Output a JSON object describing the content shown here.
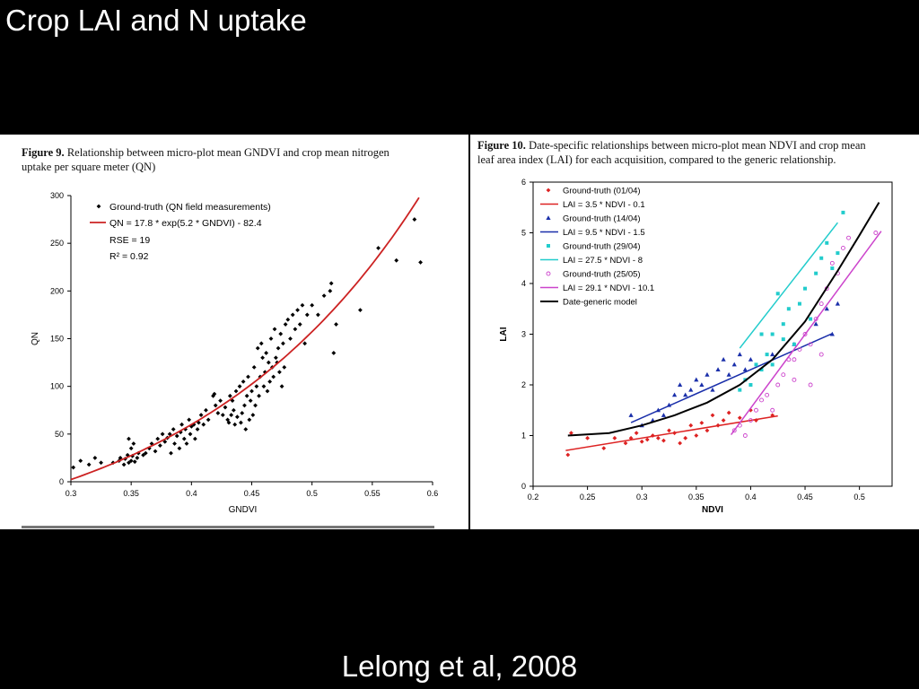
{
  "slide": {
    "title": "Crop LAI and N uptake",
    "citation": "Lelong et al, 2008"
  },
  "figure9": {
    "label": "Figure 9.",
    "caption_line1": " Relationship between micro-plot mean GNDVI and crop mean nitrogen",
    "caption_line2": "uptake per square meter (QN)"
  },
  "figure10": {
    "label": "Figure 10.",
    "caption_line1": " Date-specific relationships between micro-plot mean NDVI and crop mean",
    "caption_line2": "leaf area index (LAI) for each acquisition, compared to the generic relationship."
  },
  "chart_data": [
    {
      "type": "scatter",
      "xlabel": "GNDVI",
      "ylabel": "QN",
      "xlim": [
        0.3,
        0.6
      ],
      "ylim": [
        0,
        300
      ],
      "xticks": [
        "0.3",
        "0.35",
        "0.4",
        "0.45",
        "0.5",
        "0.55",
        "0.6"
      ],
      "yticks": [
        "0",
        "50",
        "100",
        "150",
        "200",
        "250",
        "300"
      ],
      "legend": [
        "Ground-truth (QN field measurements)",
        "QN = 17.8 * exp(5.2 * GNDVI) - 82.4"
      ],
      "annotations": [
        "RSE = 19",
        "R² = 0.92"
      ],
      "point_color": "#000000",
      "curve_color": "#cc2222",
      "points": [
        [
          0.302,
          15
        ],
        [
          0.308,
          22
        ],
        [
          0.315,
          18
        ],
        [
          0.32,
          25
        ],
        [
          0.325,
          20
        ],
        [
          0.335,
          20
        ],
        [
          0.34,
          22
        ],
        [
          0.341,
          25
        ],
        [
          0.344,
          18
        ],
        [
          0.345,
          24
        ],
        [
          0.347,
          28
        ],
        [
          0.348,
          20
        ],
        [
          0.35,
          22
        ],
        [
          0.351,
          27
        ],
        [
          0.353,
          21
        ],
        [
          0.355,
          25
        ],
        [
          0.348,
          45
        ],
        [
          0.352,
          40
        ],
        [
          0.35,
          35
        ],
        [
          0.356,
          30
        ],
        [
          0.36,
          28
        ],
        [
          0.362,
          30
        ],
        [
          0.365,
          35
        ],
        [
          0.367,
          40
        ],
        [
          0.37,
          32
        ],
        [
          0.372,
          45
        ],
        [
          0.374,
          38
        ],
        [
          0.376,
          50
        ],
        [
          0.378,
          42
        ],
        [
          0.38,
          46
        ],
        [
          0.382,
          50
        ],
        [
          0.383,
          30
        ],
        [
          0.385,
          55
        ],
        [
          0.386,
          40
        ],
        [
          0.388,
          48
        ],
        [
          0.39,
          35
        ],
        [
          0.391,
          52
        ],
        [
          0.392,
          60
        ],
        [
          0.394,
          45
        ],
        [
          0.395,
          55
        ],
        [
          0.396,
          40
        ],
        [
          0.398,
          65
        ],
        [
          0.399,
          50
        ],
        [
          0.4,
          58
        ],
        [
          0.402,
          60
        ],
        [
          0.403,
          45
        ],
        [
          0.405,
          55
        ],
        [
          0.406,
          62
        ],
        [
          0.408,
          70
        ],
        [
          0.41,
          60
        ],
        [
          0.412,
          75
        ],
        [
          0.414,
          65
        ],
        [
          0.418,
          90
        ],
        [
          0.419,
          92
        ],
        [
          0.42,
          80
        ],
        [
          0.422,
          72
        ],
        [
          0.424,
          85
        ],
        [
          0.426,
          70
        ],
        [
          0.428,
          78
        ],
        [
          0.43,
          65
        ],
        [
          0.431,
          62
        ],
        [
          0.432,
          90
        ],
        [
          0.433,
          70
        ],
        [
          0.434,
          85
        ],
        [
          0.435,
          75
        ],
        [
          0.436,
          60
        ],
        [
          0.437,
          95
        ],
        [
          0.438,
          68
        ],
        [
          0.44,
          100
        ],
        [
          0.441,
          62
        ],
        [
          0.442,
          72
        ],
        [
          0.443,
          105
        ],
        [
          0.444,
          80
        ],
        [
          0.445,
          55
        ],
        [
          0.446,
          90
        ],
        [
          0.447,
          110
        ],
        [
          0.448,
          65
        ],
        [
          0.449,
          85
        ],
        [
          0.45,
          95
        ],
        [
          0.451,
          70
        ],
        [
          0.452,
          120
        ],
        [
          0.453,
          80
        ],
        [
          0.454,
          100
        ],
        [
          0.455,
          140
        ],
        [
          0.456,
          90
        ],
        [
          0.457,
          110
        ],
        [
          0.458,
          145
        ],
        [
          0.459,
          130
        ],
        [
          0.46,
          100
        ],
        [
          0.461,
          115
        ],
        [
          0.462,
          135
        ],
        [
          0.463,
          95
        ],
        [
          0.464,
          125
        ],
        [
          0.465,
          105
        ],
        [
          0.466,
          150
        ],
        [
          0.467,
          120
        ],
        [
          0.468,
          110
        ],
        [
          0.469,
          160
        ],
        [
          0.47,
          130
        ],
        [
          0.471,
          125
        ],
        [
          0.472,
          140
        ],
        [
          0.473,
          115
        ],
        [
          0.474,
          155
        ],
        [
          0.475,
          100
        ],
        [
          0.476,
          145
        ],
        [
          0.477,
          120
        ],
        [
          0.478,
          165
        ],
        [
          0.48,
          170
        ],
        [
          0.482,
          150
        ],
        [
          0.484,
          175
        ],
        [
          0.486,
          160
        ],
        [
          0.488,
          180
        ],
        [
          0.49,
          165
        ],
        [
          0.492,
          185
        ],
        [
          0.494,
          145
        ],
        [
          0.496,
          175
        ],
        [
          0.5,
          185
        ],
        [
          0.505,
          175
        ],
        [
          0.51,
          195
        ],
        [
          0.515,
          200
        ],
        [
          0.516,
          208
        ],
        [
          0.518,
          135
        ],
        [
          0.52,
          165
        ],
        [
          0.54,
          180
        ],
        [
          0.555,
          245
        ],
        [
          0.57,
          232
        ],
        [
          0.585,
          275
        ],
        [
          0.59,
          230
        ]
      ]
    },
    {
      "type": "scatter",
      "xlabel": "NDVI",
      "ylabel": "LAI",
      "xlim": [
        0.2,
        0.53
      ],
      "ylim": [
        0,
        6
      ],
      "xticks": [
        "0.2",
        "0.25",
        "0.3",
        "0.35",
        "0.4",
        "0.45",
        "0.5"
      ],
      "yticks": [
        "0",
        "1",
        "2",
        "3",
        "4",
        "5",
        "6"
      ],
      "series": [
        {
          "name": "Ground-truth (01/04)",
          "marker": "diamond",
          "color": "#dd2222",
          "points": [
            [
              0.232,
              0.62
            ],
            [
              0.235,
              1.05
            ],
            [
              0.25,
              0.95
            ],
            [
              0.265,
              0.75
            ],
            [
              0.275,
              0.95
            ],
            [
              0.285,
              0.85
            ],
            [
              0.29,
              0.95
            ],
            [
              0.295,
              1.05
            ],
            [
              0.3,
              0.88
            ],
            [
              0.305,
              0.92
            ],
            [
              0.31,
              1.0
            ],
            [
              0.315,
              0.95
            ],
            [
              0.32,
              0.9
            ],
            [
              0.325,
              1.1
            ],
            [
              0.33,
              1.05
            ],
            [
              0.335,
              0.85
            ],
            [
              0.34,
              0.95
            ],
            [
              0.345,
              1.2
            ],
            [
              0.35,
              1.0
            ],
            [
              0.355,
              1.25
            ],
            [
              0.36,
              1.1
            ],
            [
              0.365,
              1.4
            ],
            [
              0.37,
              1.2
            ],
            [
              0.375,
              1.3
            ],
            [
              0.38,
              1.45
            ],
            [
              0.39,
              1.35
            ],
            [
              0.4,
              1.5
            ],
            [
              0.405,
              1.3
            ],
            [
              0.42,
              1.4
            ]
          ]
        },
        {
          "name": "LAI = 3.5 * NDVI - 0.1",
          "type": "line",
          "color": "#dd2222",
          "x": [
            0.23,
            0.425
          ]
        },
        {
          "name": "Ground-truth (14/04)",
          "marker": "triangle",
          "color": "#1a2faa",
          "points": [
            [
              0.29,
              1.4
            ],
            [
              0.3,
              1.2
            ],
            [
              0.31,
              1.3
            ],
            [
              0.315,
              1.5
            ],
            [
              0.32,
              1.4
            ],
            [
              0.325,
              1.6
            ],
            [
              0.33,
              1.8
            ],
            [
              0.335,
              2.0
            ],
            [
              0.34,
              1.8
            ],
            [
              0.345,
              1.9
            ],
            [
              0.35,
              2.1
            ],
            [
              0.355,
              2.0
            ],
            [
              0.36,
              2.2
            ],
            [
              0.365,
              1.9
            ],
            [
              0.37,
              2.3
            ],
            [
              0.375,
              2.5
            ],
            [
              0.38,
              2.2
            ],
            [
              0.385,
              2.4
            ],
            [
              0.39,
              2.6
            ],
            [
              0.395,
              2.3
            ],
            [
              0.4,
              2.5
            ],
            [
              0.42,
              2.6
            ],
            [
              0.44,
              2.8
            ],
            [
              0.46,
              3.2
            ],
            [
              0.47,
              3.5
            ],
            [
              0.475,
              3.0
            ],
            [
              0.48,
              3.6
            ]
          ]
        },
        {
          "name": "LAI = 9.5 * NDVI - 1.5",
          "type": "line",
          "color": "#1a2faa",
          "x": [
            0.29,
            0.475
          ]
        },
        {
          "name": "Ground-truth (29/04)",
          "marker": "square",
          "color": "#22cccc",
          "points": [
            [
              0.39,
              1.9
            ],
            [
              0.395,
              2.1
            ],
            [
              0.4,
              2.0
            ],
            [
              0.405,
              2.4
            ],
            [
              0.41,
              2.3
            ],
            [
              0.415,
              2.6
            ],
            [
              0.42,
              3.0
            ],
            [
              0.425,
              3.8
            ],
            [
              0.43,
              3.2
            ],
            [
              0.435,
              3.5
            ],
            [
              0.44,
              2.8
            ],
            [
              0.445,
              3.6
            ],
            [
              0.45,
              3.9
            ],
            [
              0.455,
              3.3
            ],
            [
              0.46,
              4.2
            ],
            [
              0.465,
              4.5
            ],
            [
              0.47,
              4.8
            ],
            [
              0.475,
              4.3
            ],
            [
              0.48,
              4.6
            ],
            [
              0.485,
              5.4
            ],
            [
              0.41,
              3.0
            ],
            [
              0.42,
              2.4
            ],
            [
              0.43,
              2.9
            ]
          ]
        },
        {
          "name": "LAI = 27.5 * NDVI - 8",
          "type": "line",
          "color": "#22cccc",
          "x": [
            0.39,
            0.48
          ]
        },
        {
          "name": "Ground-truth (25/05)",
          "marker": "circle-open",
          "color": "#cc44cc",
          "points": [
            [
              0.385,
              1.1
            ],
            [
              0.39,
              1.2
            ],
            [
              0.395,
              1.0
            ],
            [
              0.4,
              1.3
            ],
            [
              0.405,
              1.5
            ],
            [
              0.41,
              1.7
            ],
            [
              0.415,
              1.8
            ],
            [
              0.42,
              1.5
            ],
            [
              0.425,
              2.0
            ],
            [
              0.43,
              2.2
            ],
            [
              0.435,
              2.5
            ],
            [
              0.44,
              2.1
            ],
            [
              0.445,
              2.7
            ],
            [
              0.45,
              3.0
            ],
            [
              0.455,
              2.8
            ],
            [
              0.46,
              3.3
            ],
            [
              0.465,
              3.6
            ],
            [
              0.47,
              3.9
            ],
            [
              0.475,
              4.4
            ],
            [
              0.48,
              4.2
            ],
            [
              0.485,
              4.7
            ],
            [
              0.49,
              4.9
            ],
            [
              0.515,
              5.0
            ],
            [
              0.455,
              2.0
            ],
            [
              0.44,
              2.5
            ],
            [
              0.465,
              2.6
            ]
          ]
        },
        {
          "name": "LAI = 29.1 * NDVI - 10.1",
          "type": "line",
          "color": "#cc44cc",
          "x": [
            0.382,
            0.52
          ]
        },
        {
          "name": "Date-generic model",
          "type": "curve",
          "color": "#000000",
          "points": [
            [
              0.232,
              1.0
            ],
            [
              0.27,
              1.05
            ],
            [
              0.3,
              1.2
            ],
            [
              0.33,
              1.4
            ],
            [
              0.36,
              1.65
            ],
            [
              0.39,
              2.0
            ],
            [
              0.42,
              2.5
            ],
            [
              0.45,
              3.25
            ],
            [
              0.48,
              4.25
            ],
            [
              0.5,
              4.95
            ],
            [
              0.518,
              5.6
            ]
          ]
        }
      ]
    }
  ]
}
